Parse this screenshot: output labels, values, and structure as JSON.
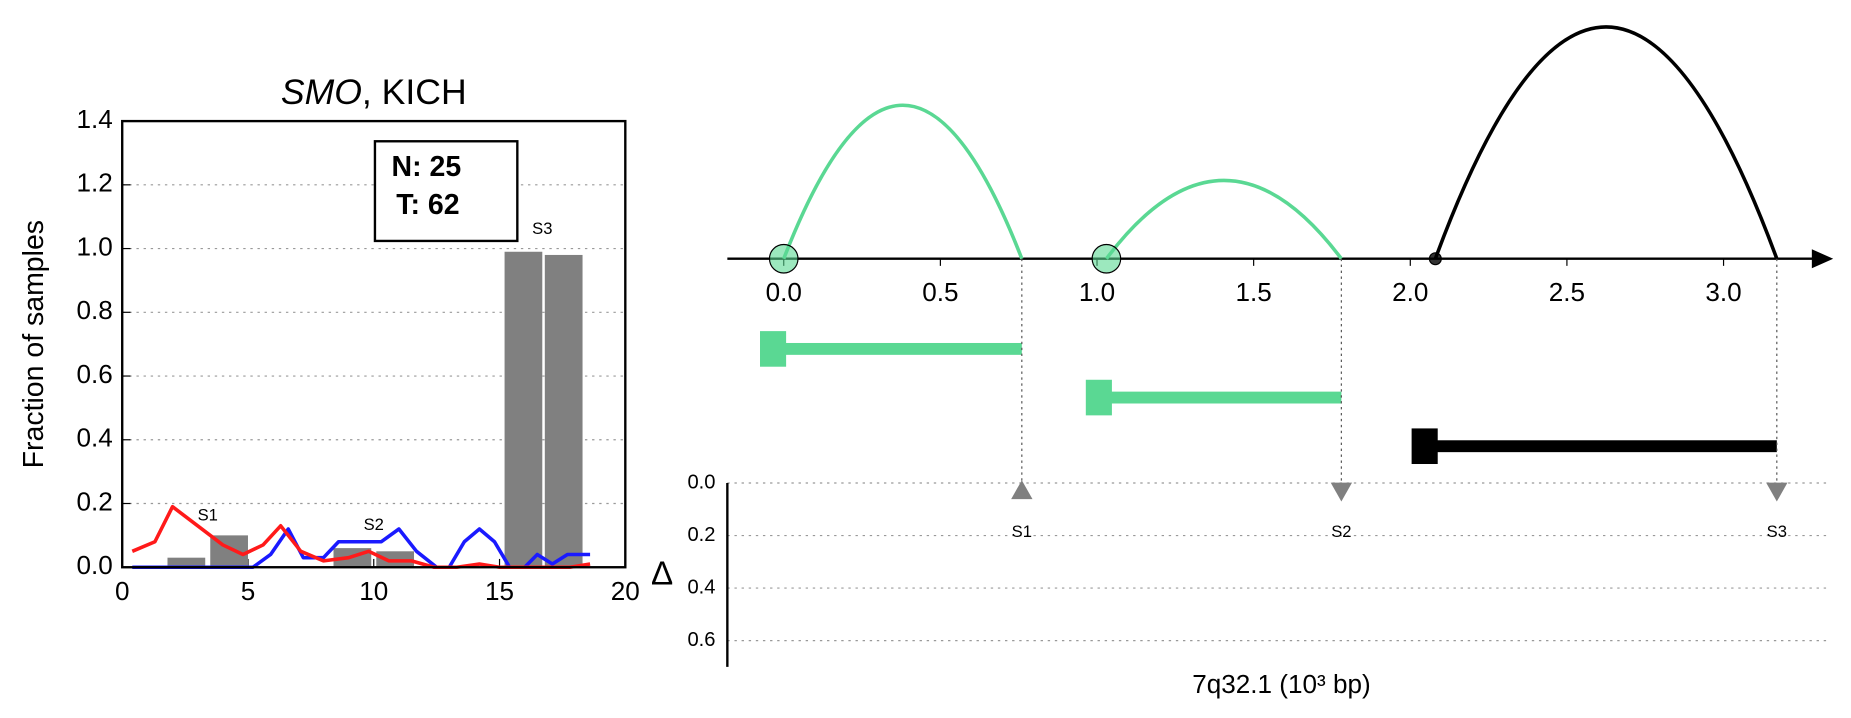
{
  "chart_data": [
    {
      "type": "combo",
      "title_parts": [
        "SMO",
        ", KICH"
      ],
      "ylabel": "Fraction of samples",
      "xlim": [
        0,
        20
      ],
      "xticks": [
        0,
        5,
        10,
        15,
        20
      ],
      "ylim": [
        0,
        1.4
      ],
      "yticks": [
        {
          "value": 0,
          "label": "0.0"
        },
        0.2,
        0.4,
        0.6,
        0.8,
        {
          "value": 1,
          "label": "1.0"
        },
        1.2,
        1.4
      ],
      "grid": true,
      "annotation": [
        "N: 25",
        "T: 62"
      ],
      "bars": {
        "color": "#808080",
        "x_start": [
          1.8,
          3.5,
          8.4,
          10.1,
          15.2,
          16.8
        ],
        "x_end": [
          3.3,
          5.0,
          9.9,
          11.6,
          16.7,
          18.3
        ],
        "values": [
          0.03,
          0.1,
          0.06,
          0.05,
          0.99,
          0.98
        ]
      },
      "series": [
        {
          "color": "#1a1aff",
          "x": [
            0.4,
            1.5,
            2.5,
            3.5,
            4.5,
            5.2,
            5.9,
            6.6,
            7.2,
            8.0,
            8.6,
            9.5,
            10.3,
            11.0,
            11.7,
            12.5,
            13.0,
            13.6,
            14.2,
            14.8,
            15.4,
            16.0,
            16.5,
            17.1,
            17.7,
            18.6
          ],
          "values": [
            0,
            0,
            0,
            0,
            0,
            0,
            0.04,
            0.12,
            0.03,
            0.03,
            0.08,
            0.08,
            0.08,
            0.12,
            0.05,
            0,
            0,
            0.08,
            0.12,
            0.08,
            0,
            0,
            0.04,
            0.01,
            0.04,
            0.04
          ]
        },
        {
          "color": "#ff1a1a",
          "x": [
            0.4,
            1.3,
            2.0,
            3.0,
            4.0,
            4.8,
            5.6,
            6.3,
            7.1,
            8.0,
            9.0,
            9.8,
            10.6,
            11.5,
            12.4,
            13.3,
            14.2,
            15.0,
            16.0,
            16.8,
            17.8,
            18.6
          ],
          "values": [
            0.05,
            0.08,
            0.19,
            0.13,
            0.07,
            0.04,
            0.07,
            0.13,
            0.05,
            0.02,
            0.03,
            0.05,
            0.02,
            0.02,
            0,
            0,
            0.01,
            0,
            0,
            0,
            0,
            0.01
          ]
        }
      ],
      "segment_labels": {
        "labels": [
          "S1",
          "S2",
          "S3"
        ],
        "x": [
          3.4,
          10.0,
          16.7
        ],
        "y": [
          0.16,
          0.13,
          1.06
        ]
      }
    },
    {
      "type": "arc",
      "xlim": [
        -0.18,
        3.35
      ],
      "xticks": [
        {
          "value": 0,
          "label": "0.0"
        },
        0.5,
        {
          "value": 1,
          "label": "1.0"
        },
        1.5,
        {
          "value": 2,
          "label": "2.0"
        },
        2.5,
        {
          "value": 3,
          "label": "3.0"
        }
      ],
      "arcs": {
        "start": [
          0.0,
          1.03,
          2.08
        ],
        "end": [
          0.76,
          1.78,
          3.17
        ],
        "height": [
          0.49,
          0.25,
          0.74
        ],
        "colors": [
          "#5ad893",
          "#5ad893",
          "#000000"
        ]
      },
      "transcripts": {
        "start": [
          0.0,
          1.04,
          2.08
        ],
        "end": [
          0.76,
          1.78,
          3.17
        ],
        "colors": [
          "#5ad893",
          "#5ad893",
          "#000000"
        ]
      },
      "breakpoints": {
        "labels": [
          "S1",
          "S2",
          "S3"
        ],
        "x": [
          0.76,
          1.78,
          3.17
        ],
        "values": [
          0.03,
          0.03,
          0.03
        ],
        "direction": [
          "up",
          "down",
          "down"
        ],
        "color": "#808080"
      },
      "ylabel": "Δ",
      "ylim": [
        0,
        0.7
      ],
      "yticks": [
        {
          "value": 0,
          "label": "0.0"
        },
        0.2,
        0.4,
        0.6
      ],
      "grid": true,
      "xlabel": "7q32.1 (10³ bp)"
    }
  ]
}
